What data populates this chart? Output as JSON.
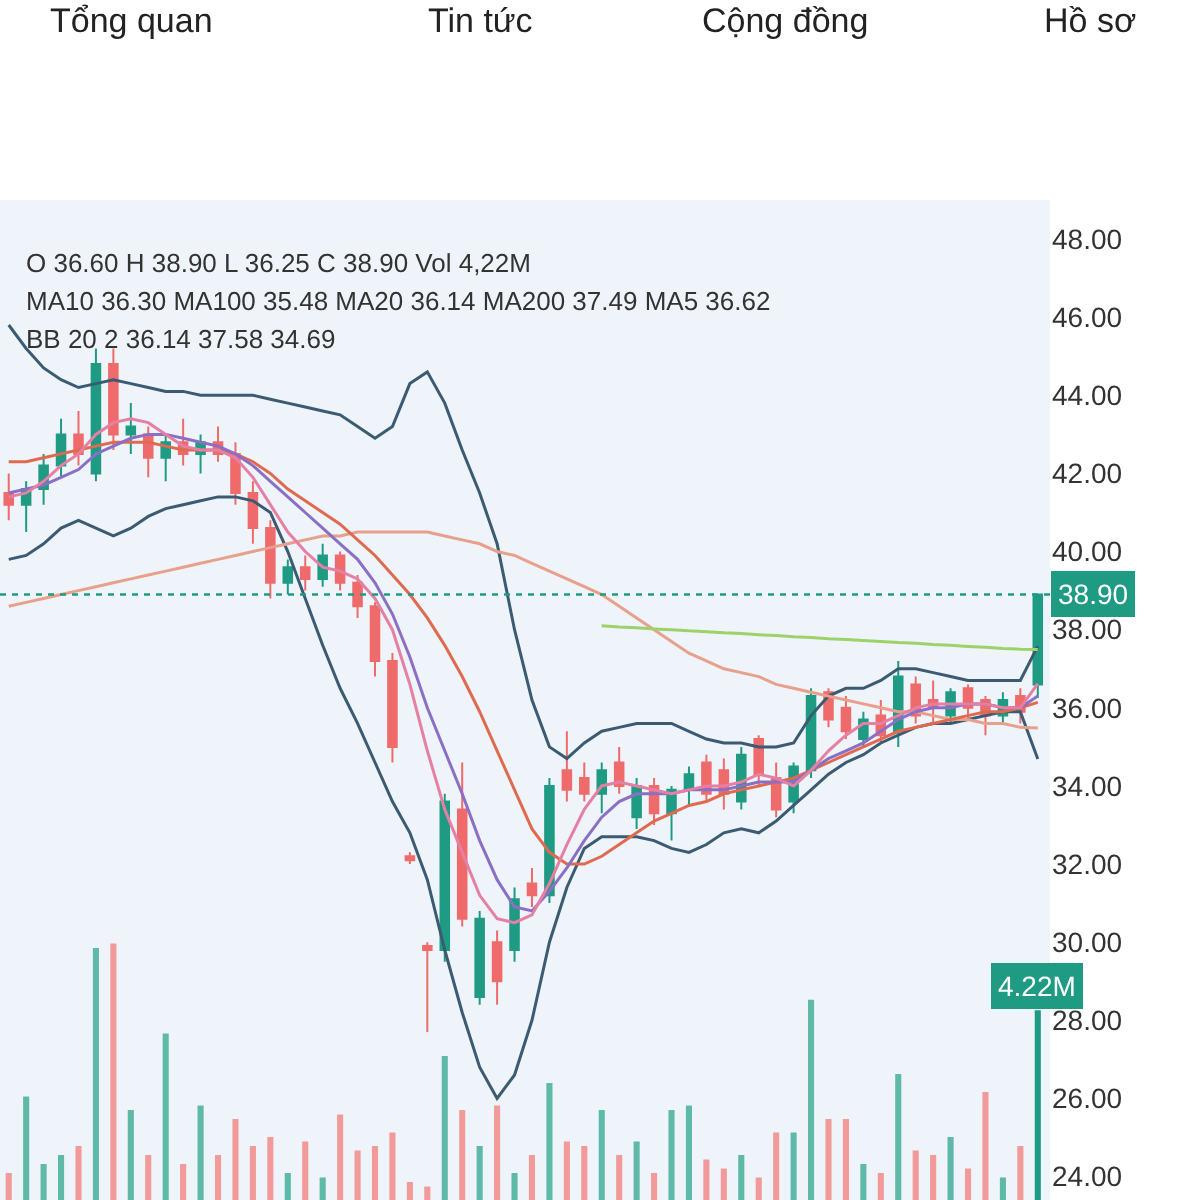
{
  "chart_data": [
    {
      "type": "candlestick",
      "categories": [
        null,
        null,
        null,
        null,
        null,
        null,
        null,
        null,
        null,
        null,
        null,
        null,
        null,
        null,
        null,
        null,
        null,
        null,
        null,
        null,
        null,
        null,
        null,
        null,
        null,
        null,
        null,
        null,
        null,
        null,
        null,
        null,
        null,
        null,
        null,
        null,
        null,
        null,
        null,
        null,
        null,
        null,
        null,
        null,
        null,
        null,
        null,
        null,
        null,
        null,
        null,
        null,
        null,
        null,
        null,
        null,
        null,
        null,
        null,
        null
      ],
      "ohlc": [
        [
          41.5,
          42,
          40.8,
          41.2
        ],
        [
          41.2,
          41.8,
          40.5,
          41.6
        ],
        [
          41.6,
          42.5,
          41.2,
          42.2
        ],
        [
          42.2,
          43.4,
          41.9,
          43.0
        ],
        [
          43.0,
          43.6,
          42.2,
          42.5
        ],
        [
          42.0,
          45.2,
          41.8,
          44.8
        ],
        [
          44.8,
          45.2,
          42.6,
          43.0
        ],
        [
          43.0,
          43.8,
          42.5,
          43.2
        ],
        [
          43.0,
          43.2,
          41.9,
          42.4
        ],
        [
          42.4,
          43.0,
          41.8,
          42.8
        ],
        [
          42.8,
          43.4,
          42.2,
          42.5
        ],
        [
          42.5,
          43.0,
          42.0,
          42.8
        ],
        [
          42.8,
          43.2,
          42.3,
          42.5
        ],
        [
          42.5,
          42.8,
          41.2,
          41.5
        ],
        [
          41.5,
          41.8,
          40.2,
          40.6
        ],
        [
          40.6,
          40.8,
          38.8,
          39.2
        ],
        [
          39.2,
          39.8,
          38.9,
          39.6
        ],
        [
          39.6,
          39.9,
          39.0,
          39.3
        ],
        [
          39.3,
          40.2,
          39.1,
          39.9
        ],
        [
          39.9,
          40.0,
          39.0,
          39.2
        ],
        [
          39.2,
          39.4,
          38.3,
          38.6
        ],
        [
          38.6,
          38.7,
          36.8,
          37.2
        ],
        [
          37.2,
          37.4,
          34.6,
          35.0
        ],
        [
          32.2,
          32.3,
          32.0,
          32.1
        ],
        [
          29.9,
          30.0,
          27.7,
          29.8
        ],
        [
          29.8,
          33.8,
          29.5,
          33.6
        ],
        [
          33.4,
          34.6,
          30.4,
          30.6
        ],
        [
          28.6,
          30.8,
          28.4,
          30.6
        ],
        [
          30.0,
          30.3,
          28.4,
          29.0
        ],
        [
          29.8,
          31.4,
          29.5,
          31.1
        ],
        [
          31.5,
          31.9,
          30.9,
          31.2
        ],
        [
          31.2,
          34.2,
          31.0,
          34.0
        ],
        [
          34.4,
          35.4,
          33.6,
          33.9
        ],
        [
          34.2,
          34.6,
          33.6,
          33.8
        ],
        [
          33.8,
          34.6,
          33.3,
          34.4
        ],
        [
          34.6,
          35.0,
          33.8,
          34.0
        ],
        [
          33.2,
          34.2,
          32.9,
          34.0
        ],
        [
          34.0,
          34.2,
          33.0,
          33.3
        ],
        [
          33.3,
          34.0,
          32.6,
          33.9
        ],
        [
          33.9,
          34.5,
          33.5,
          34.3
        ],
        [
          34.6,
          34.8,
          33.6,
          33.8
        ],
        [
          34.4,
          34.7,
          33.4,
          33.8
        ],
        [
          33.6,
          35.0,
          33.4,
          34.8
        ],
        [
          35.2,
          35.3,
          34.0,
          34.3
        ],
        [
          34.2,
          34.6,
          33.2,
          33.4
        ],
        [
          33.6,
          34.6,
          33.3,
          34.5
        ],
        [
          34.4,
          36.5,
          34.2,
          36.3
        ],
        [
          36.4,
          36.5,
          35.5,
          35.7
        ],
        [
          36.0,
          36.3,
          35.2,
          35.4
        ],
        [
          35.2,
          35.9,
          35.0,
          35.7
        ],
        [
          35.8,
          36.2,
          35.1,
          35.3
        ],
        [
          35.4,
          37.2,
          35.0,
          36.8
        ],
        [
          36.6,
          36.8,
          35.6,
          35.8
        ],
        [
          36.2,
          36.7,
          35.6,
          36.0
        ],
        [
          35.8,
          36.5,
          35.6,
          36.4
        ],
        [
          36.5,
          36.6,
          35.7,
          36.0
        ],
        [
          36.2,
          36.3,
          35.3,
          35.8
        ],
        [
          35.8,
          36.4,
          35.6,
          36.2
        ],
        [
          36.3,
          36.5,
          35.6,
          35.9
        ],
        [
          36.6,
          38.9,
          36.25,
          38.9
        ]
      ],
      "colors": [
        "#ef6b6b",
        "#1f9b84",
        "#1f9b84",
        "#1f9b84",
        "#ef6b6b",
        "#1f9b84",
        "#ef6b6b",
        "#1f9b84",
        "#ef6b6b",
        "#1f9b84",
        "#ef6b6b",
        "#1f9b84",
        "#ef6b6b",
        "#ef6b6b",
        "#ef6b6b",
        "#ef6b6b",
        "#1f9b84",
        "#ef6b6b",
        "#1f9b84",
        "#ef6b6b",
        "#ef6b6b",
        "#ef6b6b",
        "#ef6b6b",
        "#ef6b6b",
        "#ef6b6b",
        "#1f9b84",
        "#ef6b6b",
        "#1f9b84",
        "#ef6b6b",
        "#1f9b84",
        "#ef6b6b",
        "#1f9b84",
        "#ef6b6b",
        "#ef6b6b",
        "#1f9b84",
        "#ef6b6b",
        "#1f9b84",
        "#ef6b6b",
        "#1f9b84",
        "#1f9b84",
        "#ef6b6b",
        "#ef6b6b",
        "#1f9b84",
        "#ef6b6b",
        "#ef6b6b",
        "#1f9b84",
        "#1f9b84",
        "#ef6b6b",
        "#ef6b6b",
        "#1f9b84",
        "#ef6b6b",
        "#1f9b84",
        "#ef6b6b",
        "#ef6b6b",
        "#1f9b84",
        "#ef6b6b",
        "#ef6b6b",
        "#1f9b84",
        "#ef6b6b",
        "#1f9b84"
      ],
      "series": [
        {
          "type": "line",
          "color": "#3b5b73",
          "values": [
            45.8,
            45.2,
            44.7,
            44.4,
            44.2,
            44.3,
            44.4,
            44.3,
            44.2,
            44.1,
            44.1,
            44.0,
            44.0,
            44.0,
            44.0,
            43.9,
            43.8,
            43.7,
            43.6,
            43.5,
            43.2,
            42.9,
            43.2,
            44.3,
            44.6,
            43.8,
            42.6,
            41.5,
            40.2,
            38.0,
            36.2,
            35.0,
            34.7,
            35.1,
            35.4,
            35.5,
            35.6,
            35.6,
            35.6,
            35.4,
            35.2,
            35.1,
            35.1,
            35.0,
            35.0,
            35.1,
            35.8,
            36.3,
            36.5,
            36.5,
            36.7,
            37.0,
            37.0,
            36.9,
            36.8,
            36.7,
            36.7,
            36.7,
            36.7,
            37.58
          ]
        },
        {
          "type": "line",
          "color": "#3b5b73",
          "values": [
            39.8,
            39.9,
            40.2,
            40.6,
            40.8,
            40.6,
            40.4,
            40.6,
            40.9,
            41.1,
            41.2,
            41.3,
            41.4,
            41.4,
            41.3,
            41.0,
            40.0,
            38.8,
            37.6,
            36.5,
            35.6,
            34.6,
            33.6,
            32.8,
            31.6,
            29.8,
            28.2,
            26.8,
            26.0,
            26.6,
            28.0,
            30.0,
            31.4,
            32.4,
            32.7,
            32.7,
            32.7,
            32.6,
            32.4,
            32.3,
            32.5,
            32.8,
            32.9,
            32.8,
            33.1,
            33.5,
            33.9,
            34.3,
            34.6,
            34.8,
            35.1,
            35.3,
            35.5,
            35.6,
            35.6,
            35.7,
            35.8,
            35.9,
            35.9,
            34.69
          ]
        },
        {
          "type": "line",
          "color": "#e8a08c",
          "values": [
            38.6,
            38.7,
            38.8,
            38.9,
            39.0,
            39.1,
            39.2,
            39.3,
            39.4,
            39.5,
            39.6,
            39.7,
            39.8,
            39.9,
            40.0,
            40.1,
            40.2,
            40.3,
            40.4,
            40.4,
            40.5,
            40.5,
            40.5,
            40.5,
            40.5,
            40.4,
            40.3,
            40.2,
            40.0,
            39.9,
            39.7,
            39.5,
            39.3,
            39.1,
            38.9,
            38.6,
            38.3,
            38.0,
            37.7,
            37.4,
            37.2,
            37.0,
            36.9,
            36.8,
            36.6,
            36.5,
            36.4,
            36.3,
            36.2,
            36.1,
            36.0,
            35.9,
            35.9,
            35.8,
            35.7,
            35.7,
            35.6,
            35.6,
            35.5,
            35.48
          ]
        },
        {
          "type": "line",
          "color": "#9bd36a",
          "values": [
            null,
            null,
            null,
            null,
            null,
            null,
            null,
            null,
            null,
            null,
            null,
            null,
            null,
            null,
            null,
            null,
            null,
            null,
            null,
            null,
            null,
            null,
            null,
            null,
            null,
            null,
            null,
            null,
            null,
            null,
            null,
            null,
            null,
            null,
            38.1,
            38.07,
            38.05,
            38.02,
            38.0,
            37.97,
            37.95,
            37.92,
            37.9,
            37.87,
            37.85,
            37.82,
            37.8,
            37.77,
            37.75,
            37.72,
            37.7,
            37.67,
            37.65,
            37.62,
            37.6,
            37.57,
            37.55,
            37.52,
            37.5,
            37.49
          ]
        },
        {
          "type": "line",
          "color": "#e06a4f",
          "values": [
            42.3,
            42.3,
            42.4,
            42.5,
            42.6,
            42.7,
            42.8,
            42.8,
            42.8,
            42.7,
            42.6,
            42.6,
            42.6,
            42.5,
            42.3,
            42.0,
            41.6,
            41.3,
            41.0,
            40.7,
            40.3,
            39.9,
            39.4,
            38.9,
            38.3,
            37.6,
            36.8,
            35.9,
            34.9,
            33.9,
            32.9,
            32.3,
            32.0,
            32.0,
            32.2,
            32.5,
            32.8,
            33.1,
            33.3,
            33.5,
            33.6,
            33.8,
            33.9,
            34.0,
            34.1,
            34.2,
            34.4,
            34.6,
            34.8,
            35.0,
            35.2,
            35.4,
            35.5,
            35.6,
            35.7,
            35.8,
            35.9,
            35.9,
            36.0,
            36.14
          ]
        },
        {
          "type": "line",
          "color": "#8a6fc4",
          "values": [
            41.5,
            41.6,
            41.7,
            41.9,
            42.1,
            42.5,
            42.7,
            42.9,
            43.0,
            43.0,
            42.9,
            42.8,
            42.7,
            42.5,
            42.2,
            41.8,
            41.4,
            41.0,
            40.6,
            40.2,
            39.8,
            39.2,
            38.4,
            37.3,
            36.0,
            34.9,
            33.8,
            32.6,
            31.6,
            30.9,
            30.8,
            31.3,
            31.9,
            32.6,
            33.2,
            33.6,
            33.8,
            33.8,
            33.8,
            33.9,
            33.9,
            33.9,
            34.0,
            34.1,
            34.1,
            34.1,
            34.4,
            34.7,
            34.9,
            35.1,
            35.4,
            35.7,
            35.9,
            36.0,
            36.0,
            36.1,
            36.1,
            36.0,
            36.0,
            36.3
          ]
        },
        {
          "type": "line",
          "color": "#e57fa3",
          "values": [
            41.4,
            41.5,
            41.8,
            42.2,
            42.5,
            43.0,
            43.3,
            43.4,
            43.3,
            43.0,
            42.7,
            42.6,
            42.6,
            42.4,
            41.9,
            41.2,
            40.5,
            40.0,
            39.6,
            39.5,
            39.3,
            38.8,
            38.0,
            36.6,
            34.9,
            33.4,
            32.3,
            31.2,
            30.6,
            30.5,
            30.7,
            31.5,
            32.5,
            33.4,
            34.0,
            34.1,
            34.0,
            33.9,
            33.8,
            33.9,
            34.0,
            34.0,
            34.1,
            34.3,
            34.2,
            34.0,
            34.4,
            34.9,
            35.3,
            35.6,
            35.6,
            35.8,
            36.0,
            36.1,
            36.1,
            36.1,
            36.1,
            36.0,
            36.0,
            36.62
          ]
        }
      ],
      "ylim": [
        23.4,
        49.0
      ],
      "yticks": [
        {
          "value": 24,
          "label": "24.00"
        },
        {
          "value": 26,
          "label": "26.00"
        },
        {
          "value": 28,
          "label": "28.00"
        },
        {
          "value": 30,
          "label": "30.00"
        },
        {
          "value": 32,
          "label": "32.00"
        },
        {
          "value": 34,
          "label": "34.00"
        },
        {
          "value": 36,
          "label": "36.00"
        },
        {
          "value": 38,
          "label": "38.00"
        },
        {
          "value": 40,
          "label": "40.00"
        },
        {
          "value": 42,
          "label": "42.00"
        },
        {
          "value": 44,
          "label": "44.00"
        },
        {
          "value": 46,
          "label": "46.00"
        },
        {
          "value": 48,
          "label": "48.00"
        }
      ],
      "tick_labels": "y",
      "ref_lines": [
        {
          "axis": "y",
          "value": 38.9,
          "label": "38.90",
          "color": "#1f9b84",
          "line_style": "dotted"
        }
      ],
      "annotations": [
        "Tổng quan",
        "Tin tức",
        "Cộng đồng",
        "Hồ sơ",
        "O 36.60 H 38.90 L 36.25 C 38.90 Vol 4,22M",
        "MA10 36.30 MA100 35.48 MA20 36.14 MA200 37.49 MA5 36.62",
        "BB 20 2 36.14 37.58 34.69"
      ]
    },
    {
      "type": "bar",
      "categories": [
        null,
        null,
        null,
        null,
        null,
        null,
        null,
        null,
        null,
        null,
        null,
        null,
        null,
        null,
        null,
        null,
        null,
        null,
        null,
        null,
        null,
        null,
        null,
        null,
        null,
        null,
        null,
        null,
        null,
        null,
        null,
        null,
        null,
        null,
        null,
        null,
        null,
        null,
        null,
        null,
        null,
        null,
        null,
        null,
        null,
        null,
        null,
        null,
        null,
        null,
        null,
        null,
        null,
        null,
        null,
        null,
        null,
        null,
        null,
        null
      ],
      "values": [
        0.6,
        2.3,
        0.8,
        1.0,
        1.2,
        5.6,
        5.7,
        2.0,
        1.0,
        3.7,
        0.8,
        2.1,
        1.0,
        1.8,
        1.2,
        1.4,
        0.6,
        1.3,
        0.5,
        1.9,
        1.1,
        1.2,
        1.5,
        0.4,
        0.3,
        3.2,
        2.0,
        1.2,
        2.1,
        0.6,
        1.0,
        2.6,
        1.3,
        1.2,
        2.0,
        1.0,
        1.3,
        0.6,
        2.0,
        2.1,
        0.9,
        0.7,
        1.0,
        0.5,
        1.5,
        1.5,
        4.45,
        1.8,
        1.8,
        0.8,
        0.6,
        2.8,
        1.1,
        1.0,
        1.4,
        0.7,
        2.4,
        0.5,
        1.2,
        4.22
      ],
      "colors": [
        "#f29a9a",
        "#5fb9a8",
        "#5fb9a8",
        "#5fb9a8",
        "#f29a9a",
        "#5fb9a8",
        "#f29a9a",
        "#5fb9a8",
        "#f29a9a",
        "#5fb9a8",
        "#f29a9a",
        "#5fb9a8",
        "#f29a9a",
        "#f29a9a",
        "#f29a9a",
        "#f29a9a",
        "#5fb9a8",
        "#f29a9a",
        "#5fb9a8",
        "#f29a9a",
        "#f29a9a",
        "#f29a9a",
        "#f29a9a",
        "#f29a9a",
        "#f29a9a",
        "#5fb9a8",
        "#f29a9a",
        "#5fb9a8",
        "#f29a9a",
        "#5fb9a8",
        "#f29a9a",
        "#5fb9a8",
        "#f29a9a",
        "#f29a9a",
        "#5fb9a8",
        "#f29a9a",
        "#5fb9a8",
        "#f29a9a",
        "#5fb9a8",
        "#5fb9a8",
        "#f29a9a",
        "#f29a9a",
        "#5fb9a8",
        "#f29a9a",
        "#f29a9a",
        "#5fb9a8",
        "#5fb9a8",
        "#f29a9a",
        "#f29a9a",
        "#5fb9a8",
        "#f29a9a",
        "#5fb9a8",
        "#f29a9a",
        "#f29a9a",
        "#5fb9a8",
        "#f29a9a",
        "#f29a9a",
        "#5fb9a8",
        "#f29a9a",
        "#1f9b84"
      ],
      "value_labels": [
        null,
        null,
        null,
        null,
        null,
        null,
        null,
        null,
        null,
        null,
        null,
        null,
        null,
        null,
        null,
        null,
        null,
        null,
        null,
        null,
        null,
        null,
        null,
        null,
        null,
        null,
        null,
        null,
        null,
        null,
        null,
        null,
        null,
        null,
        null,
        null,
        null,
        null,
        null,
        null,
        null,
        null,
        null,
        null,
        null,
        null,
        null,
        null,
        null,
        null,
        null,
        null,
        null,
        null,
        null,
        null,
        null,
        null,
        null,
        "4.22M"
      ]
    }
  ]
}
